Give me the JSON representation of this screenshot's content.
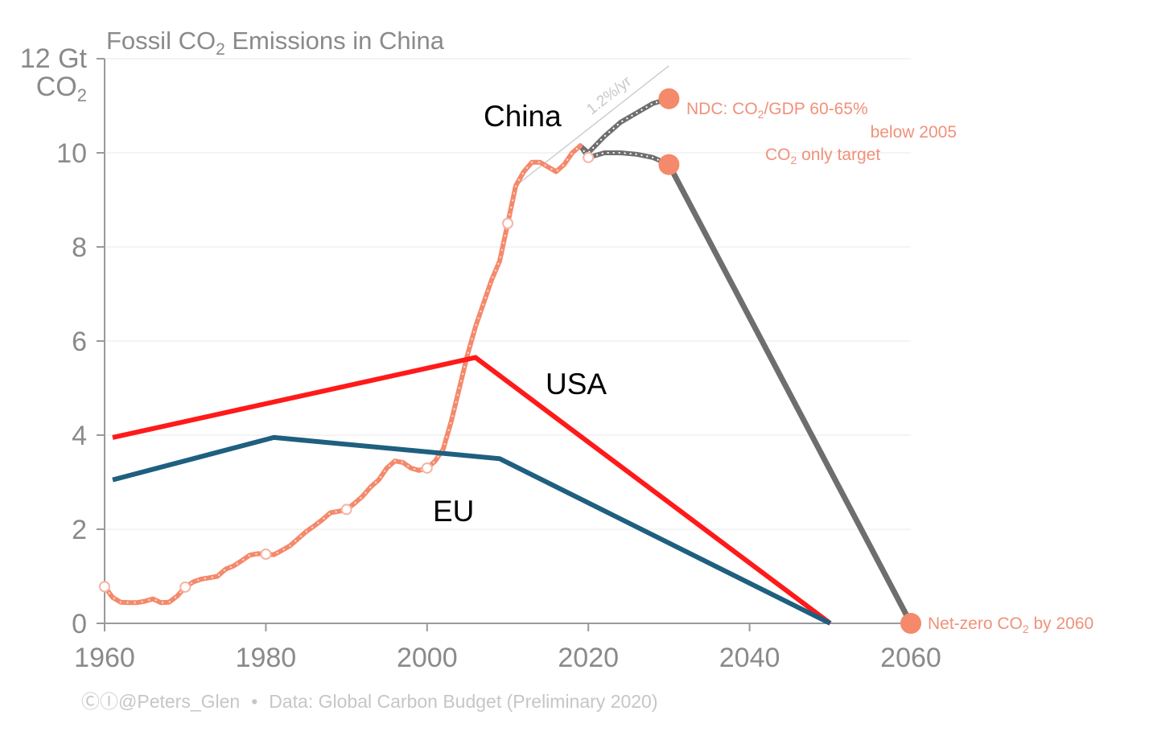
{
  "chart_data": {
    "type": "line",
    "title_prefix": "Fossil CO",
    "title_sub": "2",
    "title_suffix": " Emissions in China",
    "yunit_line1": "12 Gt",
    "yunit_line2_main": "CO",
    "yunit_line2_sub": "2",
    "xlim": [
      1960,
      2060
    ],
    "ylim": [
      0,
      12
    ],
    "xticks": [
      "1960",
      "1980",
      "2000",
      "2020",
      "2040",
      "2060"
    ],
    "yticks": [
      "0",
      "2",
      "4",
      "6",
      "8",
      "10"
    ],
    "grid": true,
    "colors": {
      "china": "#f4896b",
      "usa": "#ff1a1a",
      "eu": "#1f5f7f",
      "projection": "#6e6e6e",
      "trend": "#cfcfcf"
    },
    "series": [
      {
        "name": "China",
        "role": "historical",
        "x": [
          1960,
          1961,
          1962,
          1963,
          1964,
          1965,
          1966,
          1967,
          1968,
          1969,
          1970,
          1971,
          1972,
          1973,
          1974,
          1975,
          1976,
          1977,
          1978,
          1979,
          1980,
          1981,
          1982,
          1983,
          1984,
          1985,
          1986,
          1987,
          1988,
          1989,
          1990,
          1991,
          1992,
          1993,
          1994,
          1995,
          1996,
          1997,
          1998,
          1999,
          2000,
          2001,
          2002,
          2003,
          2004,
          2005,
          2006,
          2007,
          2008,
          2009,
          2010,
          2011,
          2012,
          2013,
          2014,
          2015,
          2016,
          2017,
          2018,
          2019
        ],
        "y": [
          0.78,
          0.55,
          0.45,
          0.44,
          0.44,
          0.47,
          0.52,
          0.44,
          0.45,
          0.58,
          0.77,
          0.88,
          0.94,
          0.97,
          1.0,
          1.15,
          1.22,
          1.33,
          1.45,
          1.48,
          1.47,
          1.46,
          1.55,
          1.65,
          1.8,
          1.95,
          2.07,
          2.2,
          2.35,
          2.38,
          2.42,
          2.55,
          2.7,
          2.9,
          3.05,
          3.3,
          3.45,
          3.42,
          3.3,
          3.25,
          3.3,
          3.45,
          3.7,
          4.3,
          5.0,
          5.7,
          6.3,
          6.8,
          7.3,
          7.7,
          8.5,
          9.3,
          9.6,
          9.8,
          9.8,
          9.7,
          9.6,
          9.75,
          10.0,
          10.15
        ]
      },
      {
        "name": "",
        "role": "projection-ndc",
        "x": [
          2019,
          2020,
          2022,
          2024,
          2026,
          2028,
          2030
        ],
        "y": [
          10.15,
          10.0,
          10.35,
          10.65,
          10.85,
          11.05,
          11.15
        ]
      },
      {
        "name": "",
        "role": "projection-co2",
        "x": [
          2019,
          2020,
          2022,
          2024,
          2026,
          2028,
          2030
        ],
        "y": [
          10.15,
          9.9,
          10.0,
          10.0,
          9.97,
          9.9,
          9.75
        ]
      },
      {
        "name": "",
        "role": "projection-netzero",
        "x": [
          2030,
          2060
        ],
        "y": [
          9.75,
          0
        ]
      },
      {
        "name": "USA",
        "role": "overlay",
        "x": [
          1961,
          2006,
          2050
        ],
        "y": [
          3.95,
          5.65,
          0
        ]
      },
      {
        "name": "EU",
        "role": "overlay",
        "x": [
          1961,
          1981,
          2009,
          2050
        ],
        "y": [
          3.05,
          3.95,
          3.5,
          0
        ]
      }
    ],
    "trend": {
      "label": "1.2%/yr",
      "x": [
        2011,
        2030
      ],
      "y": [
        9.3,
        11.85
      ]
    },
    "markers": [
      {
        "x": 2030,
        "y": 11.15
      },
      {
        "x": 2030,
        "y": 9.75
      },
      {
        "x": 2060,
        "y": 0
      }
    ],
    "open_markers": [
      {
        "x": 1960,
        "y": 0.78
      },
      {
        "x": 1970,
        "y": 0.77
      },
      {
        "x": 1980,
        "y": 1.47
      },
      {
        "x": 1990,
        "y": 2.42
      },
      {
        "x": 2000,
        "y": 3.3
      },
      {
        "x": 2010,
        "y": 8.5
      },
      {
        "x": 2020,
        "y": 9.9
      }
    ],
    "annotations": {
      "ndc_line1_a": "NDC: CO",
      "ndc_line1_sub": "2",
      "ndc_line1_b": "/GDP 60-65%",
      "ndc_line2": "below 2005",
      "co2_a": "CO",
      "co2_sub": "2",
      "co2_b": " only target",
      "net_a": "Net-zero CO",
      "net_sub": "2",
      "net_b": " by 2060"
    },
    "labels": {
      "china": "China",
      "usa": "USA",
      "eu": "EU"
    },
    "credit": {
      "icons": "ⒸⒾ",
      "handle": "@Peters_Glen",
      "bullet": "•",
      "source": "Data: Global Carbon Budget (Preliminary 2020)"
    }
  }
}
